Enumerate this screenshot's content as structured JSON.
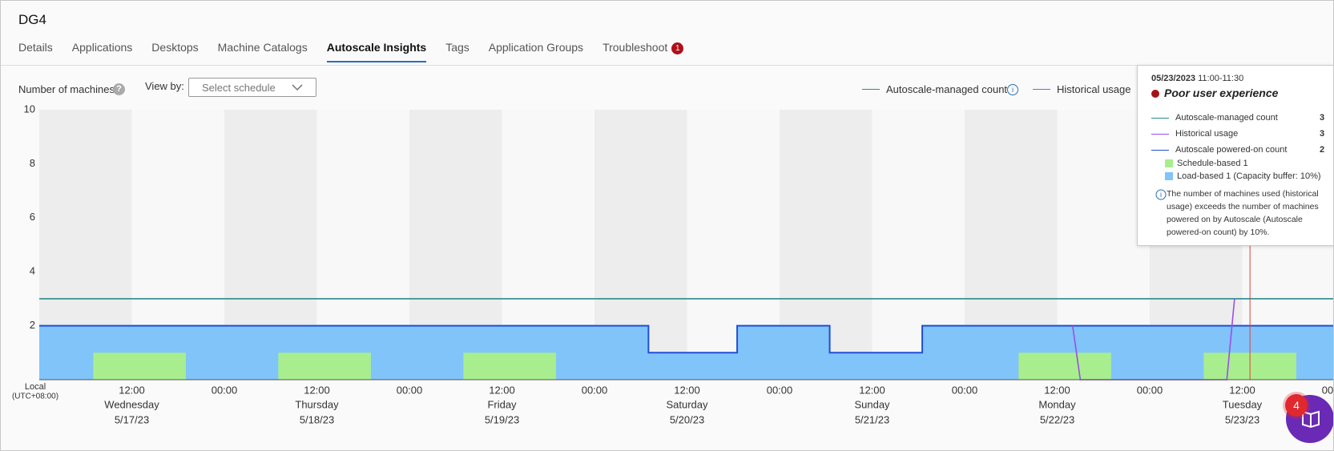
{
  "header": {
    "title": "DG4"
  },
  "tabs": {
    "items": [
      "Details",
      "Applications",
      "Desktops",
      "Machine Catalogs",
      "Autoscale Insights",
      "Tags",
      "Application Groups",
      "Troubleshoot"
    ],
    "active": "Autoscale Insights",
    "badge": {
      "tab": "Troubleshoot",
      "count": "1"
    }
  },
  "toolbar": {
    "y_label": "Number of machines",
    "view_by_label": "View by:",
    "select_placeholder": "Select schedule"
  },
  "tooltip": {
    "date": "05/23/2023",
    "time": "11:00-11:30",
    "status": "Poor user experience",
    "rows": [
      {
        "label": "Autoscale-managed count",
        "value": 3,
        "color": "#2b8a8c"
      },
      {
        "label": "Historical usage",
        "value": 3,
        "color": "#9a4fe6"
      },
      {
        "label": "Autoscale powered-on count",
        "value": 2,
        "color": "#1f4fd8"
      }
    ],
    "breakdown": [
      {
        "label": "Schedule-based 1",
        "color": "#a8ee8e"
      },
      {
        "label": "Load-based 1 (Capacity buffer: 10%)",
        "color": "#80c4fa"
      }
    ],
    "note": "The number of machines used (historical usage) exceeds the number of machines powered on by Autoscale (Autoscale powered-on count) by 10%."
  },
  "help_badge": "4",
  "chart_data": {
    "type": "step-area",
    "x_axis_label": "Local",
    "x_axis_sublabel": "(UTC+08:00)",
    "xlim": [
      "2023-05-17 00:00",
      "2023-05-24 00:00"
    ],
    "ylim": [
      0,
      10
    ],
    "yticks": [
      2,
      4,
      6,
      8,
      10
    ],
    "grid": false,
    "xticks": [
      {
        "value": "2023-05-17 12:00",
        "label": "12:00"
      },
      {
        "value": "2023-05-18 00:00",
        "label": "00:00"
      },
      {
        "value": "2023-05-18 12:00",
        "label": "12:00"
      },
      {
        "value": "2023-05-19 00:00",
        "label": "00:00"
      },
      {
        "value": "2023-05-19 12:00",
        "label": "12:00"
      },
      {
        "value": "2023-05-20 00:00",
        "label": "00:00"
      },
      {
        "value": "2023-05-20 12:00",
        "label": "12:00"
      },
      {
        "value": "2023-05-21 00:00",
        "label": "00:00"
      },
      {
        "value": "2023-05-21 12:00",
        "label": "12:00"
      },
      {
        "value": "2023-05-22 00:00",
        "label": "00:00"
      },
      {
        "value": "2023-05-22 12:00",
        "label": "12:00"
      },
      {
        "value": "2023-05-23 00:00",
        "label": "00:00"
      },
      {
        "value": "2023-05-23 12:00",
        "label": "12:00"
      },
      {
        "value": "2023-05-24 00:00",
        "label": "00:00"
      }
    ],
    "day_labels": [
      {
        "value": "2023-05-17 12:00",
        "day": "Wednesday",
        "date": "5/17/23"
      },
      {
        "value": "2023-05-18 12:00",
        "day": "Thursday",
        "date": "5/18/23"
      },
      {
        "value": "2023-05-19 12:00",
        "day": "Friday",
        "date": "5/19/23"
      },
      {
        "value": "2023-05-20 12:00",
        "day": "Saturday",
        "date": "5/20/23"
      },
      {
        "value": "2023-05-21 12:00",
        "day": "Sunday",
        "date": "5/21/23"
      },
      {
        "value": "2023-05-22 12:00",
        "day": "Monday",
        "date": "5/22/23"
      },
      {
        "value": "2023-05-23 12:00",
        "day": "Tuesday",
        "date": "5/23/23"
      }
    ],
    "series": [
      {
        "name": "Autoscale-managed count",
        "color": "#2b8a8c",
        "x": [
          "2023-05-17 00:00",
          "2023-05-24 00:00"
        ],
        "values": [
          3,
          3
        ]
      },
      {
        "name": "Historical usage",
        "color": "#9a4fe6",
        "x": [
          "2023-05-22 14:00",
          "2023-05-22 15:00",
          "2023-05-23 10:00",
          "2023-05-23 11:00"
        ],
        "values": [
          2,
          0,
          0,
          3
        ]
      }
    ],
    "powered_on": {
      "color": "#1f4fd8",
      "fill": "#80c4fa",
      "x": [
        "2023-05-17 00:00",
        "2023-05-20 07:00",
        "2023-05-20 07:00",
        "2023-05-20 18:30",
        "2023-05-20 18:30",
        "2023-05-21 06:30",
        "2023-05-21 06:30",
        "2023-05-21 18:30",
        "2023-05-21 18:30",
        "2023-05-24 00:00"
      ],
      "values": [
        2,
        2,
        1,
        1,
        2,
        2,
        1,
        1,
        2,
        2
      ]
    },
    "schedule": {
      "color": "#a8ee8e",
      "starts": [
        "2023-05-17 07:00",
        "2023-05-18 07:00",
        "2023-05-19 07:00",
        "2023-05-22 07:00",
        "2023-05-23 07:00"
      ],
      "ends": [
        "2023-05-17 19:00",
        "2023-05-18 19:00",
        "2023-05-19 19:00",
        "2023-05-22 19:00",
        "2023-05-23 19:00"
      ],
      "values": [
        1,
        1,
        1,
        1,
        1
      ]
    },
    "current_time": {
      "x": "2023-05-23 13:00",
      "color": "#e0403a"
    }
  }
}
